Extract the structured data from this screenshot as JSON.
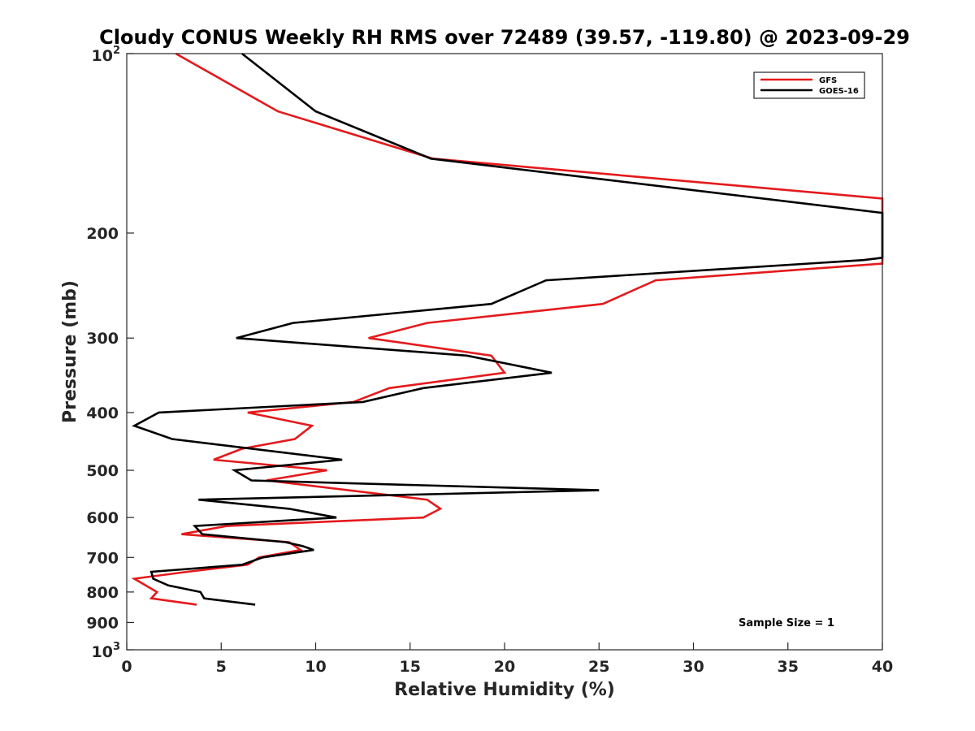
{
  "chart_data": {
    "type": "line",
    "title": "Cloudy CONUS Weekly RH RMS over 72489 (39.57, -119.80) @ 2023-09-29",
    "xlabel": "Relative Humidity (%)",
    "ylabel": "Pressure (mb)",
    "xlim": [
      0,
      40
    ],
    "ylim": [
      100,
      1000
    ],
    "y_scale": "log",
    "y_reversed": true,
    "grid": false,
    "legend_position": "top-right",
    "x_ticks": [
      "0",
      "5",
      "10",
      "15",
      "20",
      "25",
      "30",
      "35",
      "40"
    ],
    "y_ticks": [
      {
        "value": 100,
        "label": "10",
        "sup": "2"
      },
      {
        "value": 200,
        "label": "200"
      },
      {
        "value": 300,
        "label": "300"
      },
      {
        "value": 400,
        "label": "400"
      },
      {
        "value": 500,
        "label": "500"
      },
      {
        "value": 600,
        "label": "600"
      },
      {
        "value": 700,
        "label": "700"
      },
      {
        "value": 800,
        "label": "800"
      },
      {
        "value": 900,
        "label": "900"
      },
      {
        "value": 1000,
        "label": "10",
        "sup": "3"
      }
    ],
    "annotation": "Sample Size = 1",
    "series": [
      {
        "name": "GFS",
        "color": "#e41a1c",
        "points": [
          [
            2.6,
            100
          ],
          [
            8.0,
            125
          ],
          [
            16.2,
            150
          ],
          [
            40.0,
            175
          ],
          [
            40.0,
            225
          ],
          [
            28.0,
            240
          ],
          [
            25.2,
            263
          ],
          [
            15.9,
            283
          ],
          [
            12.8,
            300
          ],
          [
            19.3,
            321
          ],
          [
            20.0,
            343
          ],
          [
            13.9,
            364
          ],
          [
            12.0,
            384
          ],
          [
            6.4,
            400
          ],
          [
            9.8,
            421
          ],
          [
            8.9,
            443
          ],
          [
            6.1,
            460
          ],
          [
            4.6,
            480
          ],
          [
            10.6,
            500
          ],
          [
            7.4,
            520
          ],
          [
            15.9,
            560
          ],
          [
            16.6,
            580
          ],
          [
            15.7,
            600
          ],
          [
            5.3,
            620
          ],
          [
            2.9,
            640
          ],
          [
            8.6,
            660
          ],
          [
            9.2,
            680
          ],
          [
            7.0,
            700
          ],
          [
            6.4,
            720
          ],
          [
            3.2,
            740
          ],
          [
            0.4,
            760
          ],
          [
            1.6,
            800
          ],
          [
            1.3,
            820
          ],
          [
            3.7,
            840
          ]
        ]
      },
      {
        "name": "GOES-16",
        "color": "#000000",
        "points": [
          [
            6.1,
            100
          ],
          [
            10.0,
            125
          ],
          [
            16.1,
            150
          ],
          [
            40.0,
            185
          ],
          [
            40.0,
            220
          ],
          [
            39.0,
            222
          ],
          [
            22.2,
            240
          ],
          [
            19.3,
            263
          ],
          [
            8.8,
            283
          ],
          [
            5.8,
            300
          ],
          [
            18.0,
            321
          ],
          [
            22.5,
            343
          ],
          [
            15.7,
            364
          ],
          [
            12.5,
            384
          ],
          [
            1.7,
            400
          ],
          [
            0.4,
            421
          ],
          [
            2.4,
            443
          ],
          [
            11.4,
            480
          ],
          [
            5.7,
            500
          ],
          [
            6.6,
            520
          ],
          [
            25.0,
            540
          ],
          [
            3.8,
            560
          ],
          [
            8.6,
            580
          ],
          [
            11.1,
            600
          ],
          [
            3.6,
            620
          ],
          [
            4.0,
            640
          ],
          [
            8.4,
            660
          ],
          [
            9.3,
            670
          ],
          [
            9.9,
            680
          ],
          [
            7.2,
            700
          ],
          [
            6.1,
            720
          ],
          [
            1.3,
            740
          ],
          [
            1.4,
            760
          ],
          [
            2.2,
            780
          ],
          [
            3.9,
            800
          ],
          [
            4.1,
            820
          ],
          [
            6.8,
            840
          ]
        ]
      }
    ]
  }
}
